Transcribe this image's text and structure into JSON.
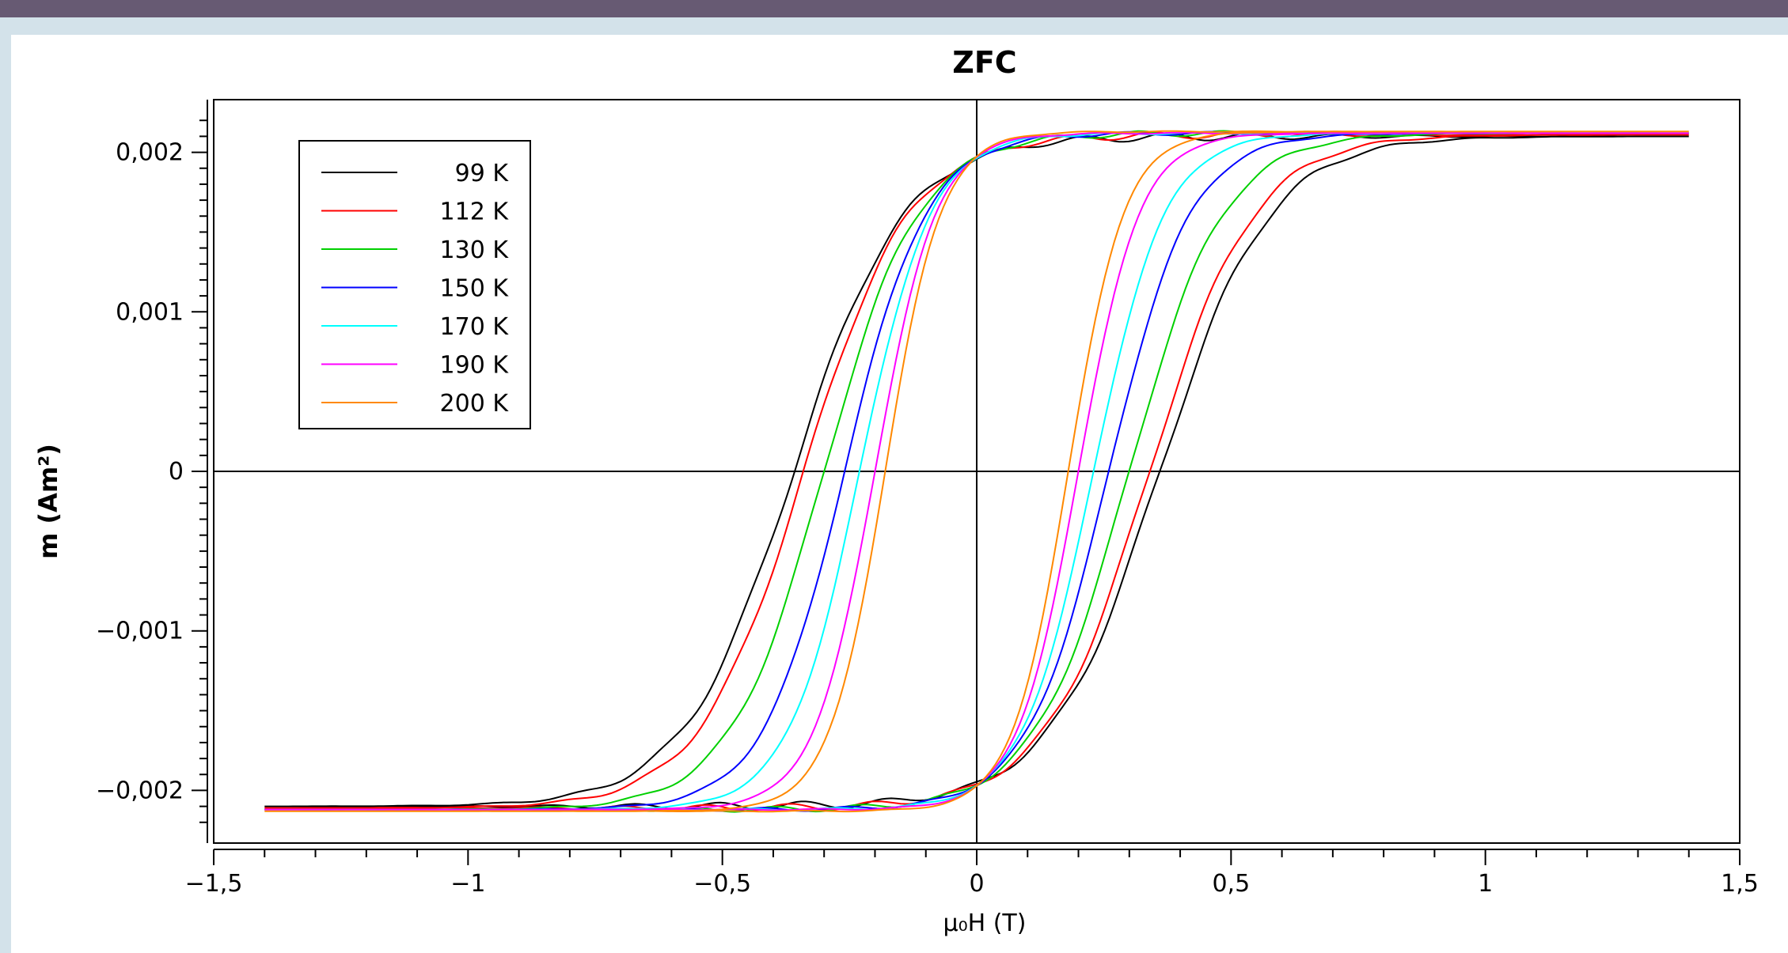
{
  "chart_data": {
    "type": "line",
    "title": "ZFC",
    "xlabel": "μ₀H (T)",
    "ylabel": "m (Am²)",
    "xlim": [
      -1.5,
      1.5
    ],
    "ylim": [
      -0.00233,
      0.00233
    ],
    "x_ticks": [
      -1.5,
      -1,
      -0.5,
      0,
      0.5,
      1,
      1.5
    ],
    "x_tick_labels": [
      "−1,5",
      "−1",
      "−0,5",
      "0",
      "0,5",
      "1",
      "1,5"
    ],
    "y_ticks": [
      0.002,
      0.001,
      0,
      -0.001,
      -0.002
    ],
    "y_tick_labels": [
      "0,002",
      "0,001",
      "0",
      "−0,001",
      "−0,002"
    ],
    "grid": false,
    "legend_position": "top-left",
    "x_range": [
      -1.4,
      1.4
    ],
    "series": [
      {
        "name": "99 K",
        "color": "#000000",
        "Hc": 0.36,
        "mr": 0.00145,
        "ms": 0.0021,
        "w": 0.215,
        "wiggle": 2.5e-05
      },
      {
        "name": "112 K",
        "color": "#ff0000",
        "Hc": 0.34,
        "mr": 0.00146,
        "ms": 0.00211,
        "w": 0.205,
        "wiggle": 2.2e-05
      },
      {
        "name": "130 K",
        "color": "#00d000",
        "Hc": 0.3,
        "mr": 0.00144,
        "ms": 0.00212,
        "w": 0.185,
        "wiggle": 1.8e-05
      },
      {
        "name": "150 K",
        "color": "#0000ff",
        "Hc": 0.26,
        "mr": 0.00142,
        "ms": 0.00212,
        "w": 0.16,
        "wiggle": 1.2e-05
      },
      {
        "name": "170 K",
        "color": "#00ffff",
        "Hc": 0.23,
        "mr": 0.0014,
        "ms": 0.00212,
        "w": 0.14,
        "wiggle": 8e-06
      },
      {
        "name": "190 K",
        "color": "#ff00ff",
        "Hc": 0.2,
        "mr": 0.00137,
        "ms": 0.00212,
        "w": 0.12,
        "wiggle": 5e-06
      },
      {
        "name": "200 K",
        "color": "#ff8800",
        "Hc": 0.18,
        "mr": 0.00134,
        "ms": 0.00213,
        "w": 0.11,
        "wiggle": 4e-06
      }
    ]
  }
}
